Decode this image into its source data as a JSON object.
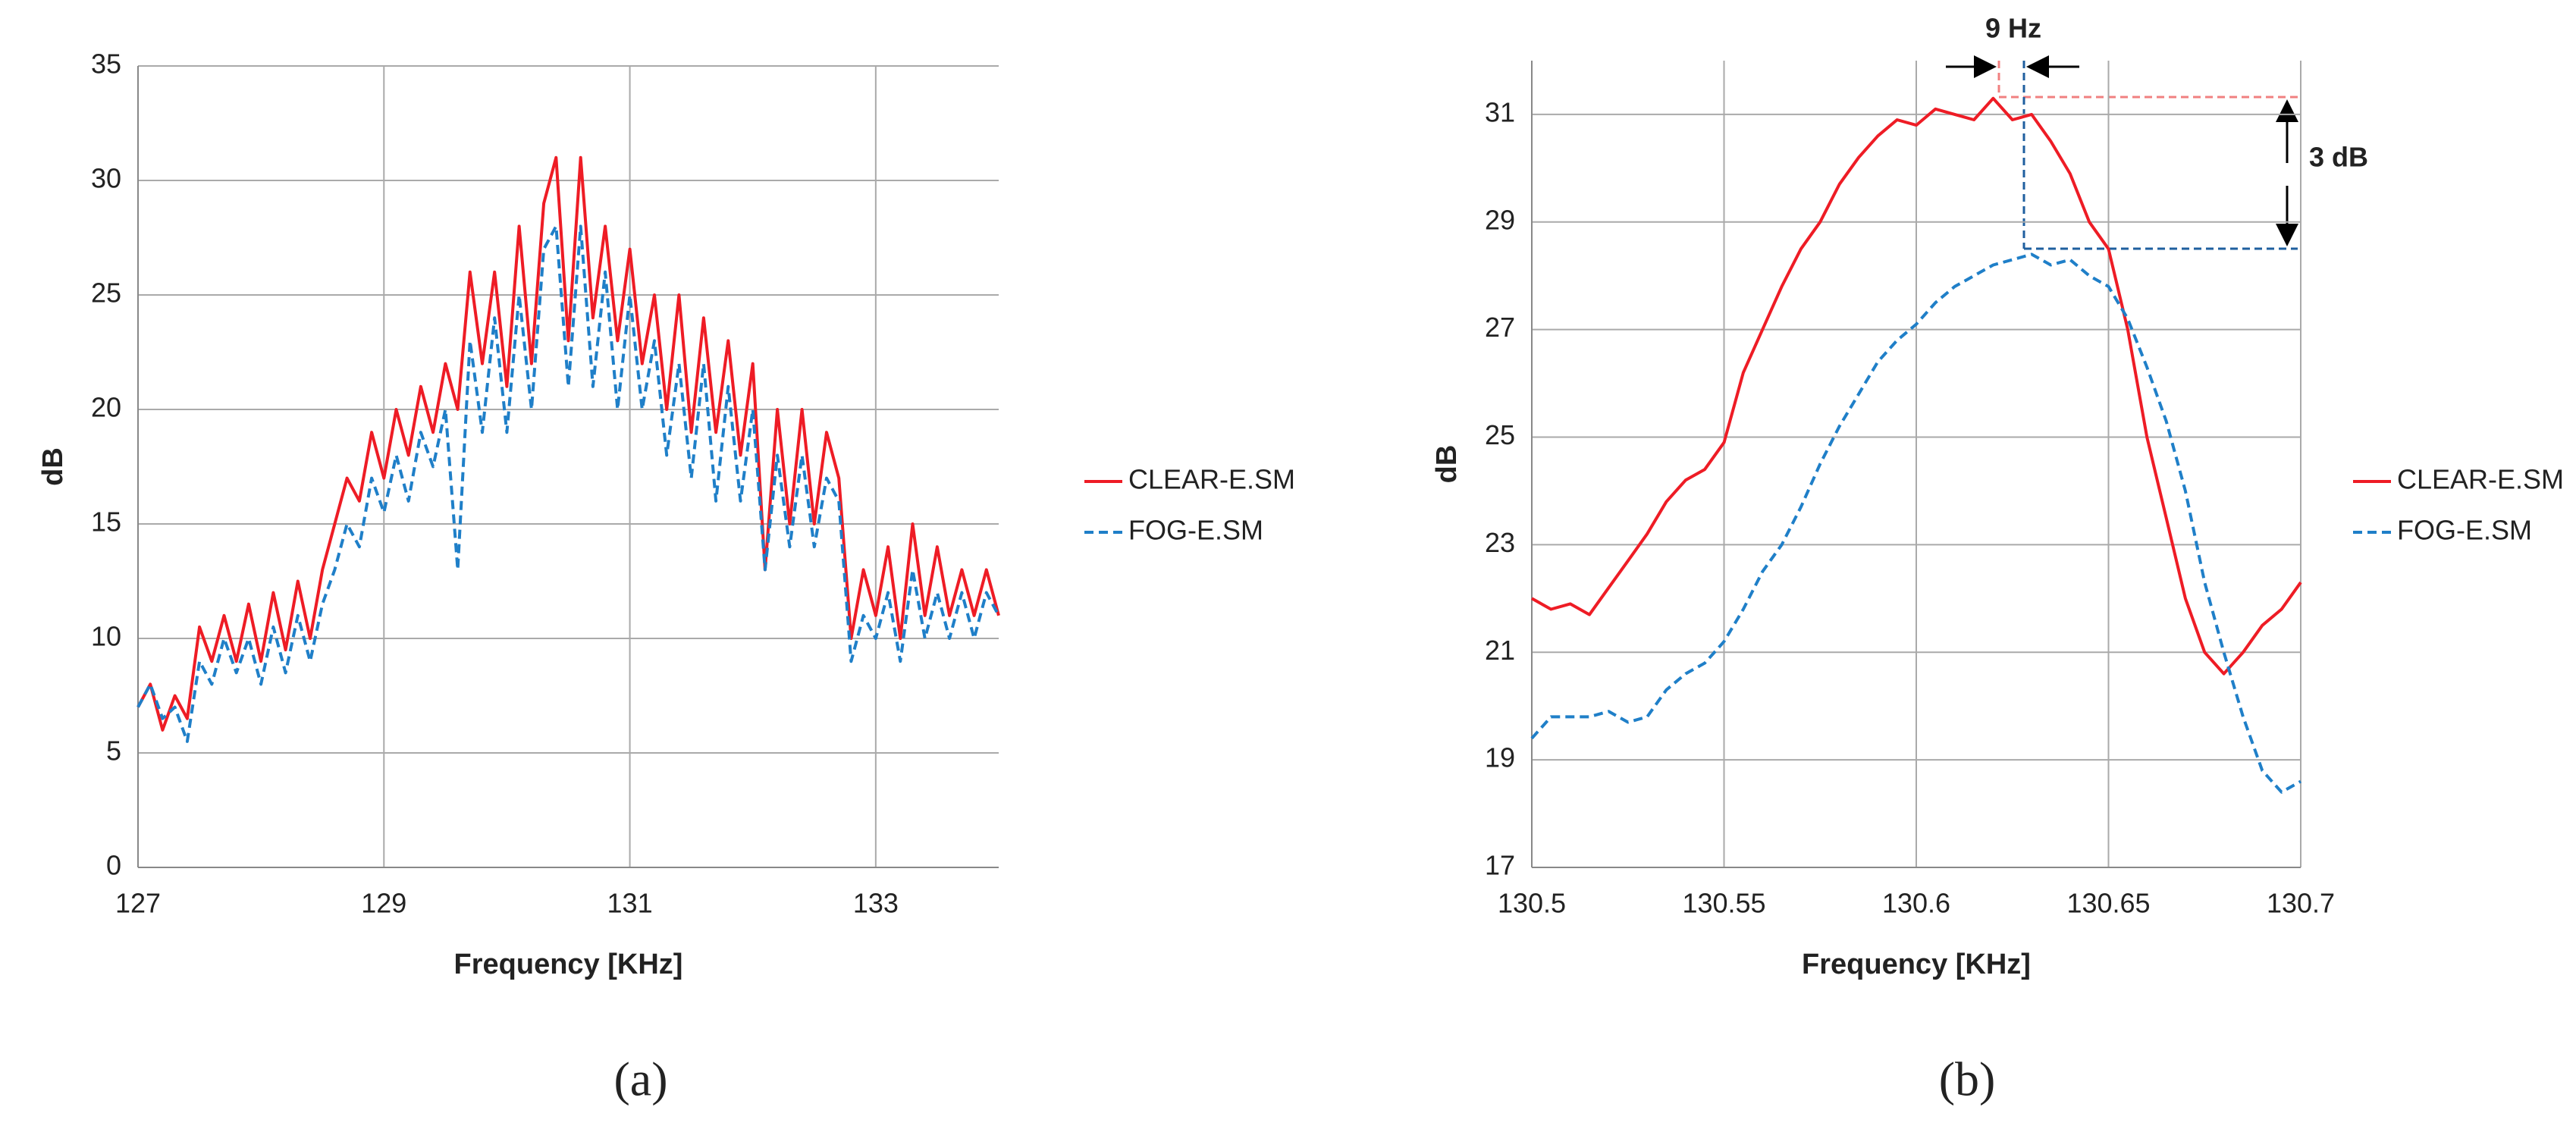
{
  "chart_data": [
    {
      "type": "line",
      "caption": "(a)",
      "x_label": "Frequency [KHz]",
      "y_label": "dB",
      "xlim": [
        127,
        134
      ],
      "xticks": [
        127,
        129,
        131,
        133
      ],
      "ylim": [
        0,
        35
      ],
      "yticks": [
        0,
        5,
        10,
        15,
        20,
        25,
        30,
        35
      ],
      "grid": true,
      "legend": "right",
      "x": [
        127.0,
        127.1,
        127.2,
        127.3,
        127.4,
        127.5,
        127.6,
        127.7,
        127.8,
        127.9,
        128.0,
        128.1,
        128.2,
        128.3,
        128.4,
        128.5,
        128.6,
        128.7,
        128.8,
        128.9,
        129.0,
        129.1,
        129.2,
        129.3,
        129.4,
        129.5,
        129.6,
        129.7,
        129.8,
        129.9,
        130.0,
        130.1,
        130.2,
        130.3,
        130.4,
        130.5,
        130.6,
        130.7,
        130.8,
        130.9,
        131.0,
        131.1,
        131.2,
        131.3,
        131.4,
        131.5,
        131.6,
        131.7,
        131.8,
        131.9,
        132.0,
        132.1,
        132.2,
        132.3,
        132.4,
        132.5,
        132.6,
        132.7,
        132.8,
        132.9,
        133.0,
        133.1,
        133.2,
        133.3,
        133.4,
        133.5,
        133.6,
        133.7,
        133.8,
        133.9,
        134.0
      ],
      "series": [
        {
          "name": "CLEAR-E.SM",
          "color": "#ee1c25",
          "linestyle": "solid",
          "values": [
            7,
            8,
            6,
            7.5,
            6.5,
            10.5,
            9,
            11,
            9,
            11.5,
            9,
            12,
            9.5,
            12.5,
            10,
            13,
            15,
            17,
            16,
            19,
            17,
            20,
            18,
            21,
            19,
            22,
            20,
            26,
            22,
            26,
            21,
            28,
            22,
            29,
            31,
            23,
            31,
            24,
            28,
            23,
            27,
            22,
            25,
            20,
            25,
            19,
            24,
            19,
            23,
            18,
            22,
            13,
            20,
            15,
            20,
            15,
            19,
            17,
            10,
            13,
            11,
            14,
            10,
            15,
            11,
            14,
            11,
            13,
            11,
            13,
            11
          ]
        },
        {
          "name": "FOG-E.SM",
          "color": "#1f7fc8",
          "linestyle": "dashed",
          "values": [
            7,
            8,
            6.5,
            7,
            5.5,
            9,
            8,
            10,
            8.5,
            10,
            8,
            10.5,
            8.5,
            11,
            9,
            11.5,
            13,
            15,
            14,
            17,
            15.5,
            18,
            16,
            19,
            17.5,
            20,
            13,
            23,
            19,
            24,
            19,
            25,
            20,
            27,
            28,
            21,
            28,
            21,
            26,
            20,
            25,
            20,
            23,
            18,
            22,
            17,
            22,
            16,
            21,
            16,
            20,
            13,
            18,
            14,
            18,
            14,
            17,
            16,
            9,
            11,
            10,
            12,
            9,
            13,
            10,
            12,
            10,
            12,
            10,
            12,
            11
          ]
        }
      ]
    },
    {
      "type": "line",
      "caption": "(b)",
      "x_label": "Frequency [KHz]",
      "y_label": "dB",
      "xlim": [
        130.5,
        130.7
      ],
      "xticks": [
        130.5,
        130.55,
        130.6,
        130.65,
        130.7
      ],
      "ylim": [
        17,
        32
      ],
      "yticks": [
        17,
        19,
        21,
        23,
        25,
        27,
        29,
        31
      ],
      "grid": true,
      "legend": "right",
      "annotations": [
        "9 Hz",
        "3 dB"
      ],
      "x": [
        130.5,
        130.505,
        130.51,
        130.515,
        130.52,
        130.525,
        130.53,
        130.535,
        130.54,
        130.545,
        130.55,
        130.555,
        130.56,
        130.565,
        130.57,
        130.575,
        130.58,
        130.585,
        130.59,
        130.595,
        130.6,
        130.605,
        130.61,
        130.615,
        130.62,
        130.625,
        130.63,
        130.635,
        130.64,
        130.645,
        130.65,
        130.655,
        130.66,
        130.665,
        130.67,
        130.675,
        130.68,
        130.685,
        130.69,
        130.695,
        130.7
      ],
      "series": [
        {
          "name": "CLEAR-E.SM",
          "color": "#ee1c25",
          "linestyle": "solid",
          "values": [
            22,
            21.8,
            21.9,
            21.7,
            22.2,
            22.7,
            23.2,
            23.8,
            24.2,
            24.4,
            24.9,
            26.2,
            27.0,
            27.8,
            28.5,
            29.0,
            29.7,
            30.2,
            30.6,
            30.9,
            30.8,
            31.1,
            31.0,
            30.9,
            31.3,
            30.9,
            31.0,
            30.5,
            29.9,
            29.0,
            28.5,
            27.0,
            25.0,
            23.5,
            22.0,
            21.0,
            20.6,
            21.0,
            21.5,
            21.8,
            22.3
          ]
        },
        {
          "name": "FOG-E.SM",
          "color": "#1f7fc8",
          "linestyle": "dashed",
          "values": [
            19.4,
            19.8,
            19.8,
            19.8,
            19.9,
            19.7,
            19.8,
            20.3,
            20.6,
            20.8,
            21.2,
            21.8,
            22.5,
            23.0,
            23.7,
            24.5,
            25.2,
            25.8,
            26.4,
            26.8,
            27.1,
            27.5,
            27.8,
            28.0,
            28.2,
            28.3,
            28.4,
            28.2,
            28.3,
            28.0,
            27.8,
            27.2,
            26.3,
            25.3,
            24.0,
            22.3,
            21.0,
            19.8,
            18.8,
            18.4,
            18.6
          ]
        }
      ]
    }
  ]
}
